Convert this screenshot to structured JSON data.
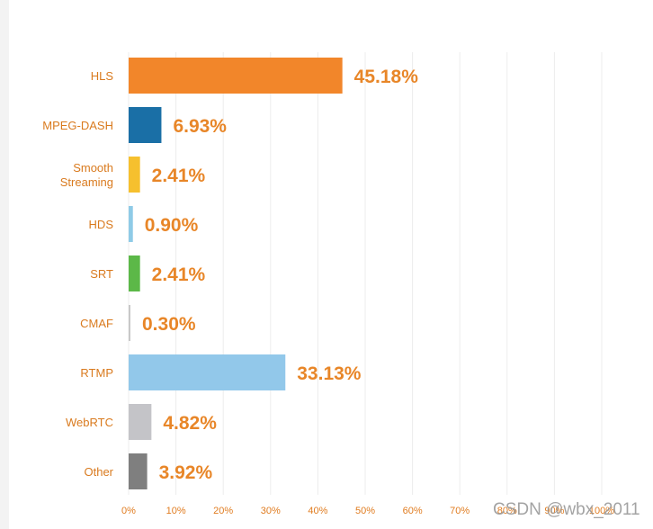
{
  "chart_data": {
    "type": "bar",
    "orientation": "horizontal",
    "categories": [
      "HLS",
      "MPEG-DASH",
      "Smooth Streaming",
      "HDS",
      "SRT",
      "CMAF",
      "RTMP",
      "WebRTC",
      "Other"
    ],
    "values": [
      45.18,
      6.93,
      2.41,
      0.9,
      2.41,
      0.3,
      33.13,
      4.82,
      3.92
    ],
    "value_labels": [
      "45.18%",
      "6.93%",
      "2.41%",
      "0.90%",
      "2.41%",
      "0.30%",
      "33.13%",
      "4.82%",
      "3.92%"
    ],
    "colors": [
      "#f2862a",
      "#1a6fa6",
      "#f6c02e",
      "#8fcbe7",
      "#5cb848",
      "#c8c8c8",
      "#92c8ea",
      "#c4c4c8",
      "#7f7f7f"
    ],
    "xlim": [
      0,
      100
    ],
    "xticks": [
      "0%",
      "10%",
      "20%",
      "30%",
      "40%",
      "50%",
      "60%",
      "70%",
      "80%",
      "90%",
      "100%"
    ],
    "grid": true,
    "title": "",
    "xlabel": "",
    "ylabel": ""
  },
  "watermark": "CSDN @wbx_2011"
}
